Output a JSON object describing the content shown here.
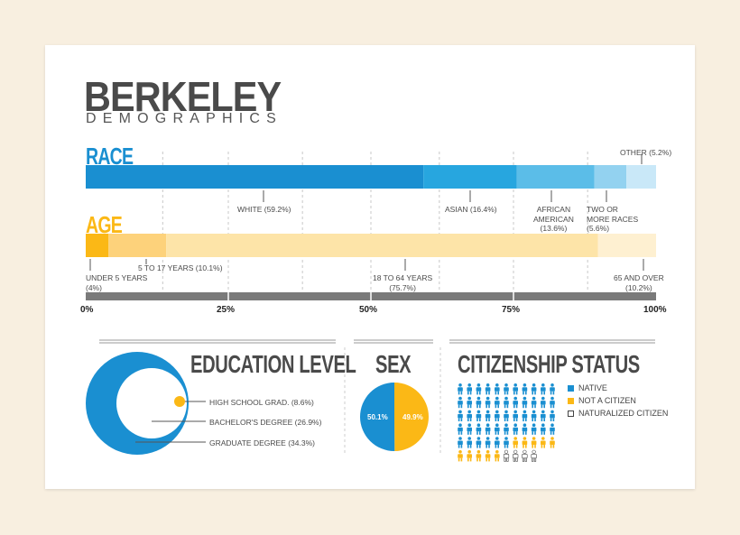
{
  "title": "BERKELEY",
  "subtitle": "DEMOGRAPHICS",
  "colors": {
    "race": [
      "#1a8fd1",
      "#27a6df",
      "#5bbde8",
      "#93d2f0",
      "#c9e8f8"
    ],
    "age": [
      "#fbb816",
      "#fdd27b",
      "#fde4a8",
      "#fef0d1"
    ],
    "axis": "#7a7a7a",
    "edu": "#1a8fd1",
    "edu_small": "#fbb816",
    "sex_male": "#1a8fd1",
    "sex_female": "#fbb816"
  },
  "chart_data": [
    {
      "type": "bar",
      "name": "race",
      "label": "RACE",
      "stacked": true,
      "categories": [
        "WHITE (59.2%)",
        "ASIAN (16.4%)",
        "AFRICAN AMERICAN (13.6%)",
        "TWO OR MORE RACES (5.6%)",
        "OTHER (5.2%)"
      ],
      "values": [
        59.2,
        16.4,
        13.6,
        5.6,
        5.2
      ],
      "xlim": [
        0,
        100
      ],
      "tick_labels": [
        "0%",
        "25%",
        "50%",
        "75%",
        "100%"
      ]
    },
    {
      "type": "bar",
      "name": "age",
      "label": "AGE",
      "stacked": true,
      "categories": [
        "UNDER 5 YEARS (4%)",
        "5 TO 17 YEARS (10.1%)",
        "18 TO 64 YEARS (75.7%)",
        "65 AND OVER (10.2%)"
      ],
      "values": [
        4,
        10.1,
        75.7,
        10.2
      ],
      "xlim": [
        0,
        100
      ]
    },
    {
      "type": "pie",
      "name": "education",
      "title": "EDUCATION LEVEL",
      "categories": [
        "HIGH SCHOOL GRAD. (8.6%)",
        "BACHELOR'S DEGREE (26.9%)",
        "GRADUATE DEGREE (34.3%)"
      ],
      "values": [
        8.6,
        26.9,
        34.3
      ]
    },
    {
      "type": "pie",
      "name": "sex",
      "title": "SEX",
      "categories": [
        "50.1%",
        "49.9%"
      ],
      "values": [
        50.1,
        49.9
      ]
    },
    {
      "type": "other",
      "name": "citizenship",
      "title": "CITIZENSHIP STATUS",
      "categories": [
        "NATIVE",
        "NOT A CITIZEN",
        "NATURALIZED CITIZEN"
      ],
      "values": [
        50,
        10,
        4
      ]
    }
  ],
  "labels": {
    "race": {
      "white": "WHITE (59.2%)",
      "asian_1": "ASIAN (16.4%)",
      "african_1": "AFRICAN",
      "african_2": "AMERICAN",
      "african_3": "(13.6%)",
      "two_1": "TWO OR",
      "two_2": "MORE RACES",
      "two_3": "(5.6%)",
      "other": "OTHER (5.2%)"
    },
    "age": {
      "under5_1": "UNDER 5 YEARS",
      "under5_2": "(4%)",
      "y5to17": "5 TO 17 YEARS (10.1%)",
      "y18to64_1": "18 TO 64 YEARS",
      "y18to64_2": "(75.7%)",
      "y65_1": "65 AND OVER",
      "y65_2": "(10.2%)"
    },
    "edu": {
      "hs": "HIGH SCHOOL GRAD. (8.6%)",
      "ba": "BACHELOR'S DEGREE (26.9%)",
      "grad": "GRADUATE DEGREE (34.3%)"
    },
    "sex": {
      "male": "50.1%",
      "female": "49.9%"
    },
    "cit": {
      "native": "NATIVE",
      "not": "NOT A CITIZEN",
      "nat": "NATURALIZED CITIZEN"
    }
  }
}
